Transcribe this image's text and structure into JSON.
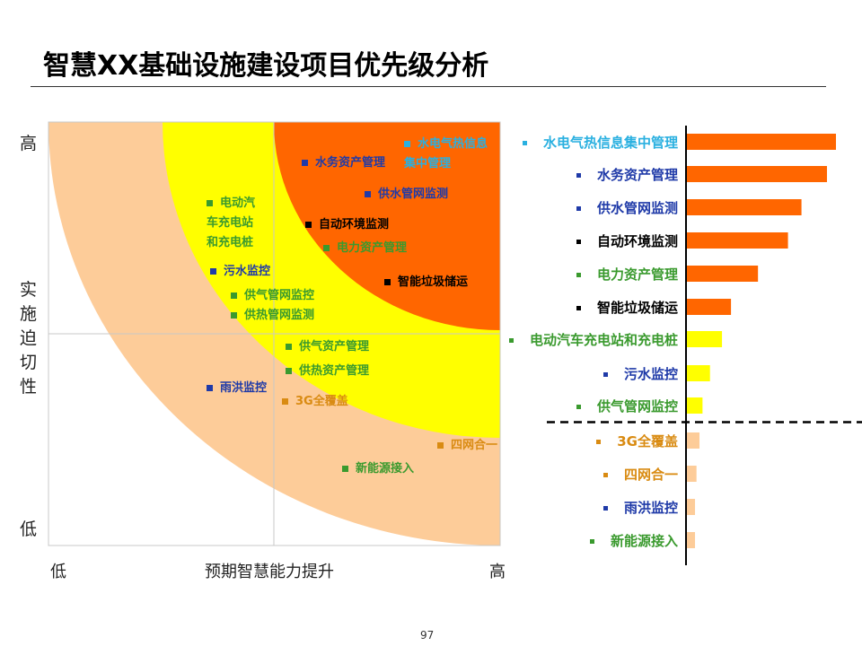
{
  "title": "智慧XX基础设施建设项目优先级分析",
  "page_number": "97",
  "colors": {
    "orange_zone": "#ff6600",
    "yellow_zone": "#ffff00",
    "peach_zone": "#fdcc99",
    "blue_text": "#1f3aa8",
    "green_text": "#3a9a2e",
    "cyan_text": "#2ab0e0",
    "black_text": "#000000",
    "amber_text": "#d98b12"
  },
  "matrix": {
    "y_axis_high": "高",
    "y_axis_title": "实施迫切性",
    "y_axis_low": "低",
    "x_axis_low": "低",
    "x_axis_title": "预期智慧能力提升",
    "x_axis_high": "高",
    "items": [
      {
        "label": "水电气热信息集中管理",
        "color": "cyan"
      },
      {
        "label": "水务资产管理",
        "color": "blue"
      },
      {
        "label": "供水管网监测",
        "color": "blue"
      },
      {
        "label": "电动汽车充电站和充电桩",
        "color": "green"
      },
      {
        "label": "自动环境监测",
        "color": "black"
      },
      {
        "label": "电力资产管理",
        "color": "green"
      },
      {
        "label": "污水监控",
        "color": "blue"
      },
      {
        "label": "智能垃圾储运",
        "color": "black"
      },
      {
        "label": "供气管网监控",
        "color": "green"
      },
      {
        "label": "供热管网监测",
        "color": "green"
      },
      {
        "label": "供气资产管理",
        "color": "green"
      },
      {
        "label": "供热资产管理",
        "color": "green"
      },
      {
        "label": "雨洪监控",
        "color": "blue"
      },
      {
        "label": "3G全覆盖",
        "color": "amber"
      },
      {
        "label": "四网合一",
        "color": "amber"
      },
      {
        "label": "新能源接入",
        "color": "green"
      }
    ]
  },
  "chart_data": {
    "type": "bar",
    "orientation": "horizontal",
    "categories": [
      "水电气热信息集中管理",
      "水务资产管理",
      "供水管网监测",
      "自动环境监测",
      "电力资产管理",
      "智能垃圾储运",
      "电动汽车充电站和充电桩",
      "污水监控",
      "供气管网监控",
      "3G全覆盖",
      "四网合一",
      "雨洪监控",
      "新能源接入"
    ],
    "values": [
      100,
      94,
      77,
      68,
      48,
      30,
      24,
      16,
      11,
      9,
      7,
      6,
      6
    ],
    "label_colors": [
      "cyan",
      "blue",
      "blue",
      "black",
      "green",
      "black",
      "green",
      "blue",
      "green",
      "amber",
      "amber",
      "blue",
      "green"
    ],
    "bar_colors": [
      "orange",
      "orange",
      "orange",
      "orange",
      "orange",
      "orange",
      "yellow",
      "yellow",
      "yellow",
      "peach",
      "peach",
      "peach",
      "peach"
    ],
    "divider_after_index": 8,
    "grid": false,
    "title": "",
    "xlabel": "",
    "ylabel": ""
  }
}
